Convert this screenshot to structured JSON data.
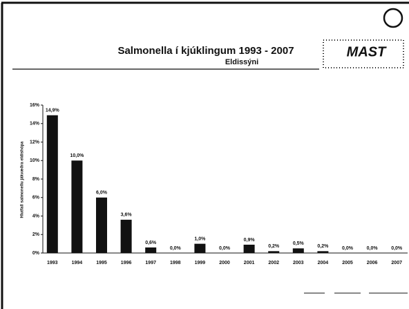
{
  "chart_data": {
    "type": "bar",
    "title": "Salmonella í kjúklingum 1993 - 2007",
    "subtitle": "Eldissýni",
    "y_label": "Hlutfall salmonellu jákvæðra eldishópa",
    "logo": "MAST",
    "categories": [
      "1993",
      "1994",
      "1995",
      "1996",
      "1997",
      "1998",
      "1999",
      "2000",
      "2001",
      "2002",
      "2003",
      "2004",
      "2005",
      "2006",
      "2007"
    ],
    "values": [
      14.9,
      10.0,
      6.0,
      3.6,
      0.6,
      0.0,
      1.0,
      0.0,
      0.9,
      0.2,
      0.5,
      0.2,
      0.0,
      0.0,
      0.0
    ],
    "value_labels": [
      "14,9%",
      "10,0%",
      "6,0%",
      "3,6%",
      "0,6%",
      "0,0%",
      "1,0%",
      "0,0%",
      "0,9%",
      "0,2%",
      "0,5%",
      "0,2%",
      "0,0%",
      "0,0%",
      "0,0%"
    ],
    "color": "#111111",
    "ylim": [
      0,
      16
    ],
    "yticks": [
      {
        "value": 0,
        "label": "0%"
      },
      {
        "value": 2,
        "label": "2%"
      },
      {
        "value": 4,
        "label": "4%"
      },
      {
        "value": 6,
        "label": "6%"
      },
      {
        "value": 8,
        "label": "8%"
      },
      {
        "value": 10,
        "label": "10%"
      },
      {
        "value": 12,
        "label": "12%"
      },
      {
        "value": 14,
        "label": "14%"
      },
      {
        "value": 16,
        "label": "16%"
      }
    ]
  }
}
